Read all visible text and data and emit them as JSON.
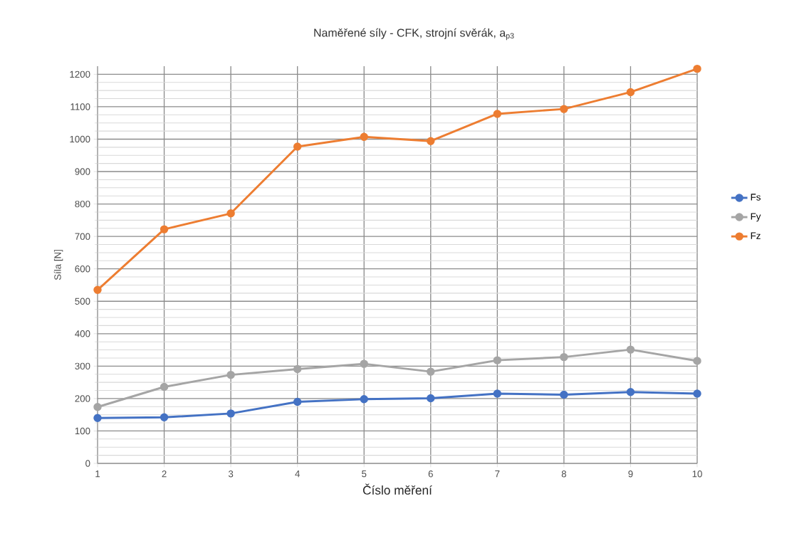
{
  "chart_data": {
    "type": "line",
    "title": "Naměřené síly - CFK, strojní svěrák, a$_{p3}$",
    "xlabel": "Číslo měření",
    "ylabel": "Síla [N]",
    "x": [
      1,
      2,
      3,
      4,
      5,
      6,
      7,
      8,
      9,
      10
    ],
    "series": [
      {
        "name": "Fs",
        "color": "#4472c4",
        "values": [
          140,
          142,
          154,
          190,
          198,
          201,
          215,
          212,
          220,
          215
        ]
      },
      {
        "name": "Fy",
        "color": "#a5a5a5",
        "values": [
          174,
          236,
          273,
          291,
          307,
          283,
          318,
          328,
          351,
          316
        ]
      },
      {
        "name": "Fz",
        "color": "#ed7d31",
        "values": [
          535,
          722,
          771,
          977,
          1007,
          994,
          1078,
          1093,
          1145,
          1217
        ]
      }
    ],
    "xlim": [
      1,
      10
    ],
    "xticks": [
      1,
      2,
      3,
      4,
      5,
      6,
      7,
      8,
      9,
      10
    ],
    "ylim": [
      0,
      1225
    ],
    "yticks": [
      0,
      100,
      200,
      300,
      400,
      500,
      600,
      700,
      800,
      900,
      1000,
      1100,
      1200
    ],
    "grid": true,
    "legend": "right",
    "marker": "circle",
    "line_style": "solid"
  }
}
